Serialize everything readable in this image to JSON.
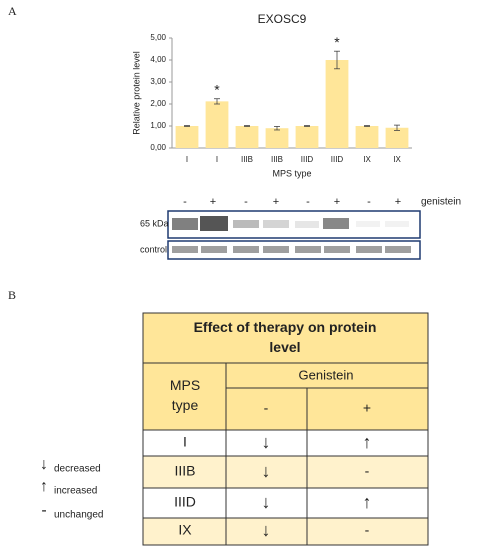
{
  "panel_labels": [
    "A",
    "B"
  ],
  "chart_data": {
    "type": "bar",
    "title": "EXOSC9",
    "y_label": "Relative protein level",
    "x_label": "MPS type",
    "categories": [
      "I",
      "I",
      "IIIB",
      "IIIB",
      "IIID",
      "IIID",
      "IX",
      "IX"
    ],
    "values": [
      1.0,
      2.12,
      1.0,
      0.9,
      1.0,
      4.0,
      1.0,
      0.92
    ],
    "errors": [
      0.02,
      0.12,
      0.02,
      0.08,
      0.02,
      0.4,
      0.02,
      0.12
    ],
    "annotations": [
      "",
      "*",
      "",
      "",
      "",
      "*",
      "",
      ""
    ],
    "color": "#ffe699",
    "ylim": [
      0,
      5
    ],
    "yticks": [
      {
        "value": 0,
        "label": "0,00"
      },
      {
        "value": 1,
        "label": "1,00"
      },
      {
        "value": 2,
        "label": "2,00"
      },
      {
        "value": 3,
        "label": "3,00"
      },
      {
        "value": 4,
        "label": "4,00"
      },
      {
        "value": 5,
        "label": "5,00"
      }
    ]
  },
  "blot": {
    "treatment": [
      "-",
      "+",
      "-",
      "+",
      "-",
      "+",
      "-",
      "+"
    ],
    "treatment_label": "genistein",
    "rows": [
      "65 kDa",
      "control"
    ]
  },
  "legend": [
    {
      "symbol": "↓",
      "label": "decreased"
    },
    {
      "symbol": "↑",
      "label": "increased"
    },
    {
      "symbol": "-",
      "label": "unchanged"
    }
  ],
  "table": {
    "title": "Effect of therapy on protein level",
    "row_header": "MPS type",
    "group_header": "Genistein",
    "columns": [
      "-",
      "+"
    ],
    "rows": [
      [
        "I",
        "↓",
        "↑"
      ],
      [
        "IIIB",
        "↓",
        "-"
      ],
      [
        "IIID",
        "↓",
        "↑"
      ],
      [
        "IX",
        "↓",
        "-"
      ]
    ]
  }
}
